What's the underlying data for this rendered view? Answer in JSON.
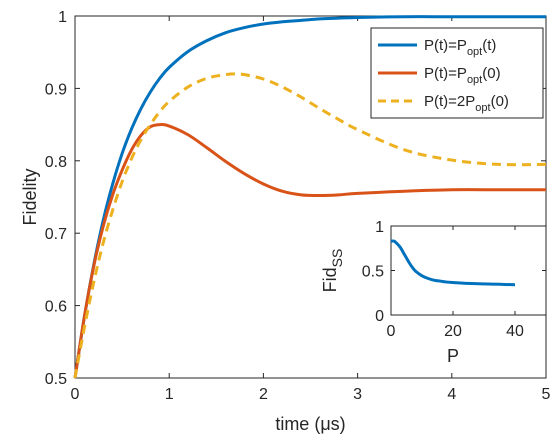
{
  "chart_data": [
    {
      "type": "line",
      "xlabel": "time (μs)",
      "ylabel": "Fidelity",
      "xlim": [
        0,
        5
      ],
      "ylim": [
        0.5,
        1
      ],
      "xticks": [
        0,
        1,
        2,
        3,
        4,
        5
      ],
      "xtick_labels": [
        "0",
        "1",
        "2",
        "3",
        "4",
        "5"
      ],
      "yticks": [
        0.5,
        0.6,
        0.7,
        0.8,
        0.9,
        1
      ],
      "ytick_labels": [
        "0.5",
        "0.6",
        "0.7",
        "0.8",
        "0.9",
        "1"
      ],
      "grid": false,
      "legend_position": "top-right",
      "series": [
        {
          "name_base": "P(t)=P",
          "name_sub": "opt",
          "name_tail": "(t)",
          "color": "#0072BD",
          "dash": "solid",
          "x": [
            0,
            0.1,
            0.2,
            0.3,
            0.4,
            0.5,
            0.6,
            0.7,
            0.8,
            0.9,
            1.0,
            1.2,
            1.4,
            1.6,
            1.8,
            2.0,
            2.2,
            2.4,
            2.6,
            2.8,
            3.0,
            3.5,
            4.0,
            4.5,
            5.0
          ],
          "y": [
            0.5,
            0.585,
            0.657,
            0.718,
            0.768,
            0.81,
            0.844,
            0.872,
            0.895,
            0.914,
            0.929,
            0.951,
            0.966,
            0.977,
            0.984,
            0.989,
            0.992,
            0.994,
            0.996,
            0.997,
            0.998,
            0.999,
            0.999,
            0.999,
            0.999
          ]
        },
        {
          "name_base": "P(t)=P",
          "name_sub": "opt",
          "name_tail": "(0)",
          "color": "#D95319",
          "dash": "solid",
          "x": [
            0,
            0.1,
            0.2,
            0.3,
            0.4,
            0.5,
            0.6,
            0.7,
            0.8,
            0.9,
            1.0,
            1.2,
            1.4,
            1.6,
            1.8,
            2.0,
            2.2,
            2.4,
            2.6,
            2.8,
            3.0,
            3.5,
            4.0,
            4.5,
            5.0
          ],
          "y": [
            0.5,
            0.585,
            0.655,
            0.71,
            0.753,
            0.787,
            0.815,
            0.835,
            0.847,
            0.85,
            0.848,
            0.836,
            0.818,
            0.799,
            0.782,
            0.768,
            0.758,
            0.753,
            0.752,
            0.753,
            0.755,
            0.758,
            0.76,
            0.76,
            0.76
          ]
        },
        {
          "name_base": "P(t)=2P",
          "name_sub": "opt",
          "name_tail": "(0)",
          "color": "#EDB120",
          "dash": "dashed",
          "x": [
            0,
            0.1,
            0.2,
            0.3,
            0.4,
            0.5,
            0.6,
            0.7,
            0.8,
            0.9,
            1.0,
            1.2,
            1.4,
            1.6,
            1.7,
            1.8,
            2.0,
            2.2,
            2.4,
            2.6,
            2.8,
            3.0,
            3.5,
            4.0,
            4.5,
            5.0
          ],
          "y": [
            0.5,
            0.57,
            0.633,
            0.687,
            0.732,
            0.771,
            0.803,
            0.829,
            0.85,
            0.868,
            0.882,
            0.902,
            0.914,
            0.919,
            0.92,
            0.919,
            0.913,
            0.902,
            0.888,
            0.872,
            0.857,
            0.843,
            0.815,
            0.801,
            0.795,
            0.795
          ]
        }
      ]
    },
    {
      "type": "line",
      "xlabel": "P",
      "ylabel_base": "Fid",
      "ylabel_sub": "SS",
      "xlim": [
        0,
        50
      ],
      "ylim": [
        0,
        1
      ],
      "xticks": [
        0,
        20,
        40
      ],
      "xtick_labels": [
        "0",
        "20",
        "40"
      ],
      "yticks": [
        0,
        0.5,
        1
      ],
      "ytick_labels": [
        "0",
        "0.5",
        "1"
      ],
      "grid": false,
      "series": [
        {
          "color": "#0072BD",
          "x": [
            0,
            1,
            2,
            3,
            4,
            5,
            6,
            7,
            8,
            10,
            12,
            14,
            16,
            18,
            20,
            25,
            30,
            35,
            40
          ],
          "y": [
            0.83,
            0.83,
            0.8,
            0.76,
            0.7,
            0.64,
            0.58,
            0.53,
            0.49,
            0.44,
            0.41,
            0.39,
            0.38,
            0.37,
            0.365,
            0.355,
            0.35,
            0.345,
            0.34
          ]
        }
      ]
    }
  ]
}
